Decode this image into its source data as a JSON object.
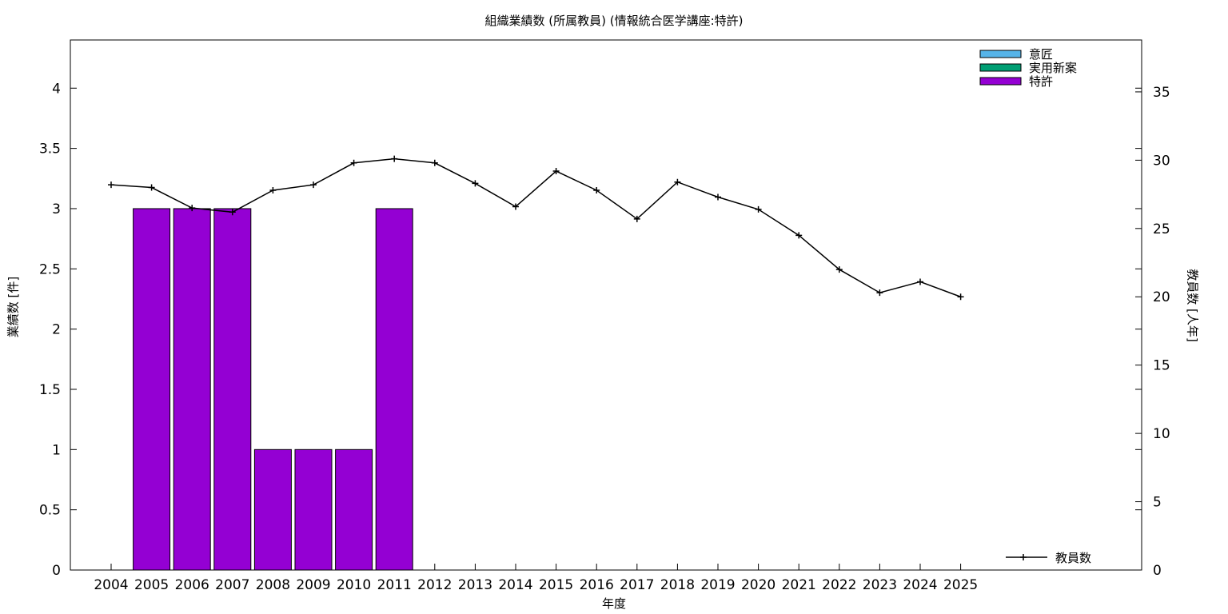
{
  "chart_data": {
    "type": "bar",
    "title": "組織業績数 (所属教員) (情報統合医学講座:特許)",
    "xlabel": "年度",
    "ylabel": "業績数 [件]",
    "y2label": "教員数 [人年]",
    "categories": [
      "2004",
      "2005",
      "2006",
      "2007",
      "2008",
      "2009",
      "2010",
      "2011",
      "2012",
      "2013",
      "2014",
      "2015",
      "2016",
      "2017",
      "2018",
      "2019",
      "2020",
      "2021",
      "2022",
      "2023",
      "2024",
      "2025"
    ],
    "ylim": [
      0,
      4.4
    ],
    "y2lim": [
      0,
      38.8
    ],
    "yticks": [
      "0",
      "0.5",
      "1",
      "1.5",
      "2",
      "2.5",
      "3",
      "3.5",
      "4"
    ],
    "y2ticks": [
      "0",
      "5",
      "10",
      "15",
      "20",
      "25",
      "30",
      "35"
    ],
    "series": [
      {
        "name": "意匠",
        "color": "#56b4e9",
        "axis": "left",
        "kind": "bar",
        "values": [
          0,
          0,
          0,
          0,
          0,
          0,
          0,
          0,
          0,
          0,
          0,
          0,
          0,
          0,
          0,
          0,
          0,
          0,
          0,
          0,
          0,
          0
        ]
      },
      {
        "name": "実用新案",
        "color": "#009e73",
        "axis": "left",
        "kind": "bar",
        "values": [
          0,
          0,
          0,
          0,
          0,
          0,
          0,
          0,
          0,
          0,
          0,
          0,
          0,
          0,
          0,
          0,
          0,
          0,
          0,
          0,
          0,
          0
        ]
      },
      {
        "name": "特許",
        "color": "#9400d3",
        "axis": "left",
        "kind": "bar",
        "values": [
          0,
          3,
          3,
          3,
          1,
          1,
          1,
          3,
          0,
          0,
          0,
          0,
          0,
          0,
          0,
          0,
          0,
          0,
          0,
          0,
          0,
          0
        ]
      },
      {
        "name": "教員数",
        "color": "#000000",
        "axis": "right",
        "kind": "line",
        "values": [
          28.2,
          28.0,
          26.5,
          26.2,
          27.8,
          28.2,
          29.8,
          30.1,
          29.8,
          28.3,
          26.6,
          29.2,
          27.8,
          25.7,
          28.4,
          27.3,
          26.4,
          24.5,
          22.0,
          20.3,
          21.1,
          20.0
        ]
      }
    ],
    "legend_position": "top-right",
    "grid": false
  }
}
